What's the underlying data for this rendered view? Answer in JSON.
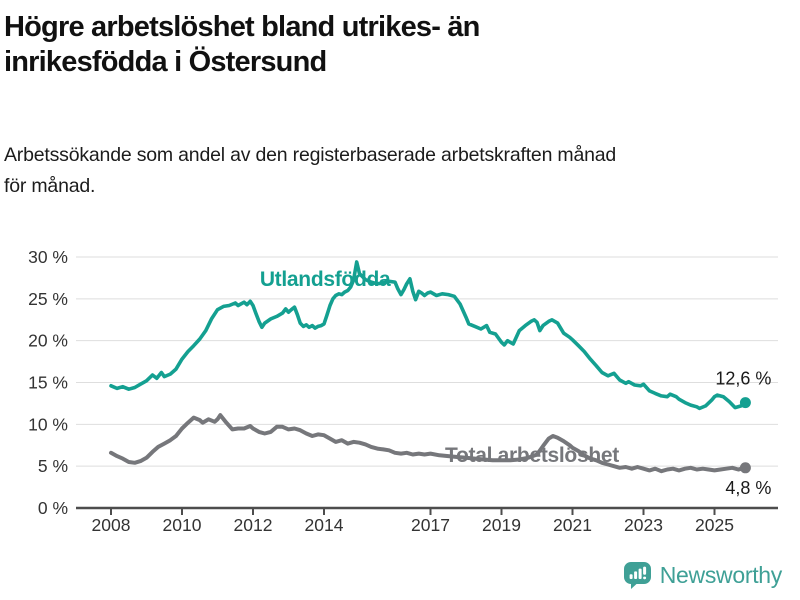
{
  "header": {
    "title_lines": [
      "Högre arbetslöshet bland utrikes- än",
      "inrikesfödda i Östersund"
    ],
    "subtitle_lines": [
      "Arbetssökande som andel av den registerbaserade arbetskraften månad",
      "för månad."
    ]
  },
  "chart_data": {
    "type": "line",
    "title": "Högre arbetslöshet bland utrikes- än inrikesfödda i Östersund",
    "subtitle": "Arbetssökande som andel av den registerbaserade arbetskraften månad för månad.",
    "xlabel": "",
    "ylabel": "",
    "x_range": [
      2007.7,
      2026.1
    ],
    "ylim": [
      0,
      30
    ],
    "grid": "horizontal",
    "colors": {
      "accent_teal": "#14a091",
      "neutral_gray": "#76777b",
      "gridline": "#dedede",
      "axis": "#4d4d4d",
      "tick_text": "#333333",
      "value_text": "#1a1a1a"
    },
    "y_ticks": [
      {
        "value": 0,
        "label": "0 %"
      },
      {
        "value": 5,
        "label": "5 %"
      },
      {
        "value": 10,
        "label": "10 %"
      },
      {
        "value": 15,
        "label": "15 %"
      },
      {
        "value": 20,
        "label": "20 %"
      },
      {
        "value": 25,
        "label": "25 %"
      },
      {
        "value": 30,
        "label": "30 %"
      }
    ],
    "x_ticks": [
      {
        "value": 2008,
        "label": "2008"
      },
      {
        "value": 2010,
        "label": "2010"
      },
      {
        "value": 2012,
        "label": "2012"
      },
      {
        "value": 2014,
        "label": "2014"
      },
      {
        "value": 2017,
        "label": "2017"
      },
      {
        "value": 2019,
        "label": "2019"
      },
      {
        "value": 2021,
        "label": "2021"
      },
      {
        "value": 2023,
        "label": "2023"
      },
      {
        "value": 2025,
        "label": "2025"
      }
    ],
    "series": [
      {
        "name": "Utlandsfödda",
        "color": "#14a091",
        "stroke_width": 3.6,
        "end_label": "12,6 %",
        "end_label_position": "above",
        "label_at": [
          2014.03,
          26.55
        ],
        "points": [
          [
            2008.0,
            14.6
          ],
          [
            2008.17,
            14.3
          ],
          [
            2008.33,
            14.5
          ],
          [
            2008.5,
            14.2
          ],
          [
            2008.67,
            14.4
          ],
          [
            2008.83,
            14.8
          ],
          [
            2009.0,
            15.2
          ],
          [
            2009.17,
            15.9
          ],
          [
            2009.29,
            15.5
          ],
          [
            2009.42,
            16.2
          ],
          [
            2009.5,
            15.7
          ],
          [
            2009.67,
            16.0
          ],
          [
            2009.83,
            16.6
          ],
          [
            2010.0,
            17.8
          ],
          [
            2010.17,
            18.7
          ],
          [
            2010.33,
            19.4
          ],
          [
            2010.5,
            20.2
          ],
          [
            2010.67,
            21.2
          ],
          [
            2010.83,
            22.6
          ],
          [
            2011.0,
            23.7
          ],
          [
            2011.17,
            24.1
          ],
          [
            2011.33,
            24.2
          ],
          [
            2011.5,
            24.5
          ],
          [
            2011.58,
            24.2
          ],
          [
            2011.75,
            24.6
          ],
          [
            2011.83,
            24.3
          ],
          [
            2011.92,
            24.7
          ],
          [
            2012.0,
            24.2
          ],
          [
            2012.08,
            23.3
          ],
          [
            2012.17,
            22.3
          ],
          [
            2012.25,
            21.6
          ],
          [
            2012.33,
            22.1
          ],
          [
            2012.5,
            22.6
          ],
          [
            2012.67,
            22.9
          ],
          [
            2012.83,
            23.3
          ],
          [
            2012.92,
            23.8
          ],
          [
            2013.0,
            23.4
          ],
          [
            2013.08,
            23.7
          ],
          [
            2013.17,
            24.0
          ],
          [
            2013.25,
            23.1
          ],
          [
            2013.33,
            22.1
          ],
          [
            2013.42,
            21.7
          ],
          [
            2013.5,
            21.9
          ],
          [
            2013.58,
            21.6
          ],
          [
            2013.67,
            21.8
          ],
          [
            2013.75,
            21.5
          ],
          [
            2013.83,
            21.7
          ],
          [
            2013.92,
            21.8
          ],
          [
            2014.0,
            22.0
          ],
          [
            2014.08,
            23.0
          ],
          [
            2014.17,
            24.2
          ],
          [
            2014.25,
            25.0
          ],
          [
            2014.33,
            25.4
          ],
          [
            2014.42,
            25.6
          ],
          [
            2014.5,
            25.5
          ],
          [
            2014.58,
            25.8
          ],
          [
            2014.67,
            26.0
          ],
          [
            2014.75,
            26.4
          ],
          [
            2014.83,
            27.2
          ],
          [
            2014.92,
            29.4
          ],
          [
            2015.0,
            28.0
          ],
          [
            2015.17,
            27.3
          ],
          [
            2015.33,
            27.0
          ],
          [
            2015.5,
            26.8
          ],
          [
            2015.67,
            26.9
          ],
          [
            2015.83,
            27.1
          ],
          [
            2016.0,
            27.0
          ],
          [
            2016.08,
            26.2
          ],
          [
            2016.17,
            25.5
          ],
          [
            2016.25,
            26.1
          ],
          [
            2016.33,
            26.8
          ],
          [
            2016.42,
            27.4
          ],
          [
            2016.5,
            25.9
          ],
          [
            2016.58,
            24.9
          ],
          [
            2016.67,
            25.9
          ],
          [
            2016.75,
            25.7
          ],
          [
            2016.83,
            25.4
          ],
          [
            2016.92,
            25.7
          ],
          [
            2017.0,
            25.8
          ],
          [
            2017.17,
            25.4
          ],
          [
            2017.33,
            25.6
          ],
          [
            2017.5,
            25.5
          ],
          [
            2017.67,
            25.3
          ],
          [
            2017.83,
            24.4
          ],
          [
            2018.0,
            22.8
          ],
          [
            2018.08,
            22.0
          ],
          [
            2018.25,
            21.7
          ],
          [
            2018.42,
            21.4
          ],
          [
            2018.58,
            21.8
          ],
          [
            2018.67,
            21.0
          ],
          [
            2018.83,
            20.8
          ],
          [
            2019.0,
            19.8
          ],
          [
            2019.08,
            19.5
          ],
          [
            2019.17,
            20.0
          ],
          [
            2019.33,
            19.6
          ],
          [
            2019.5,
            21.2
          ],
          [
            2019.67,
            21.8
          ],
          [
            2019.83,
            22.3
          ],
          [
            2019.92,
            22.5
          ],
          [
            2020.0,
            22.2
          ],
          [
            2020.08,
            21.2
          ],
          [
            2020.17,
            21.8
          ],
          [
            2020.33,
            22.3
          ],
          [
            2020.42,
            22.5
          ],
          [
            2020.58,
            22.1
          ],
          [
            2020.75,
            20.9
          ],
          [
            2020.92,
            20.4
          ],
          [
            2021.0,
            20.1
          ],
          [
            2021.17,
            19.4
          ],
          [
            2021.33,
            18.7
          ],
          [
            2021.5,
            17.8
          ],
          [
            2021.67,
            17.0
          ],
          [
            2021.83,
            16.2
          ],
          [
            2022.0,
            15.8
          ],
          [
            2022.17,
            16.1
          ],
          [
            2022.33,
            15.3
          ],
          [
            2022.5,
            14.9
          ],
          [
            2022.58,
            15.1
          ],
          [
            2022.75,
            14.7
          ],
          [
            2022.92,
            14.6
          ],
          [
            2023.0,
            14.8
          ],
          [
            2023.17,
            14.0
          ],
          [
            2023.33,
            13.7
          ],
          [
            2023.5,
            13.4
          ],
          [
            2023.67,
            13.3
          ],
          [
            2023.75,
            13.6
          ],
          [
            2023.92,
            13.3
          ],
          [
            2024.0,
            13.0
          ],
          [
            2024.17,
            12.6
          ],
          [
            2024.33,
            12.3
          ],
          [
            2024.5,
            12.1
          ],
          [
            2024.58,
            11.9
          ],
          [
            2024.75,
            12.2
          ],
          [
            2024.92,
            12.9
          ],
          [
            2025.0,
            13.3
          ],
          [
            2025.08,
            13.5
          ],
          [
            2025.25,
            13.3
          ],
          [
            2025.42,
            12.7
          ],
          [
            2025.58,
            12.0
          ],
          [
            2025.75,
            12.2
          ],
          [
            2025.87,
            12.6
          ]
        ]
      },
      {
        "name": "Total arbetslöshet",
        "color": "#76777b",
        "stroke_width": 4,
        "end_label": "4,8 %",
        "end_label_position": "below",
        "label_at": [
          2019.86,
          5.5
        ],
        "points": [
          [
            2008.0,
            6.6
          ],
          [
            2008.17,
            6.2
          ],
          [
            2008.33,
            5.9
          ],
          [
            2008.5,
            5.5
          ],
          [
            2008.67,
            5.4
          ],
          [
            2008.83,
            5.6
          ],
          [
            2009.0,
            6.0
          ],
          [
            2009.17,
            6.7
          ],
          [
            2009.33,
            7.3
          ],
          [
            2009.5,
            7.7
          ],
          [
            2009.67,
            8.1
          ],
          [
            2009.83,
            8.6
          ],
          [
            2010.0,
            9.5
          ],
          [
            2010.17,
            10.2
          ],
          [
            2010.33,
            10.8
          ],
          [
            2010.5,
            10.5
          ],
          [
            2010.58,
            10.2
          ],
          [
            2010.75,
            10.6
          ],
          [
            2010.92,
            10.3
          ],
          [
            2011.0,
            10.6
          ],
          [
            2011.08,
            11.1
          ],
          [
            2011.25,
            10.2
          ],
          [
            2011.42,
            9.4
          ],
          [
            2011.58,
            9.5
          ],
          [
            2011.75,
            9.5
          ],
          [
            2011.92,
            9.8
          ],
          [
            2012.0,
            9.5
          ],
          [
            2012.17,
            9.1
          ],
          [
            2012.33,
            8.9
          ],
          [
            2012.5,
            9.1
          ],
          [
            2012.67,
            9.7
          ],
          [
            2012.83,
            9.7
          ],
          [
            2013.0,
            9.4
          ],
          [
            2013.17,
            9.5
          ],
          [
            2013.33,
            9.3
          ],
          [
            2013.5,
            8.9
          ],
          [
            2013.67,
            8.6
          ],
          [
            2013.83,
            8.8
          ],
          [
            2014.0,
            8.7
          ],
          [
            2014.17,
            8.3
          ],
          [
            2014.33,
            7.9
          ],
          [
            2014.5,
            8.1
          ],
          [
            2014.67,
            7.7
          ],
          [
            2014.83,
            7.9
          ],
          [
            2015.0,
            7.8
          ],
          [
            2015.17,
            7.6
          ],
          [
            2015.33,
            7.3
          ],
          [
            2015.5,
            7.1
          ],
          [
            2015.67,
            7.0
          ],
          [
            2015.83,
            6.9
          ],
          [
            2016.0,
            6.6
          ],
          [
            2016.17,
            6.5
          ],
          [
            2016.33,
            6.6
          ],
          [
            2016.5,
            6.4
          ],
          [
            2016.67,
            6.5
          ],
          [
            2016.83,
            6.4
          ],
          [
            2017.0,
            6.5
          ],
          [
            2017.25,
            6.3
          ],
          [
            2017.5,
            6.2
          ],
          [
            2017.75,
            6.1
          ],
          [
            2018.0,
            6.0
          ],
          [
            2018.25,
            5.9
          ],
          [
            2018.5,
            5.8
          ],
          [
            2018.75,
            5.7
          ],
          [
            2019.0,
            5.7
          ],
          [
            2019.25,
            5.7
          ],
          [
            2019.5,
            5.8
          ],
          [
            2019.75,
            6.0
          ],
          [
            2020.0,
            6.4
          ],
          [
            2020.17,
            7.4
          ],
          [
            2020.33,
            8.3
          ],
          [
            2020.45,
            8.6
          ],
          [
            2020.58,
            8.4
          ],
          [
            2020.75,
            8.0
          ],
          [
            2020.92,
            7.5
          ],
          [
            2021.0,
            7.2
          ],
          [
            2021.17,
            6.8
          ],
          [
            2021.33,
            6.3
          ],
          [
            2021.5,
            5.9
          ],
          [
            2021.67,
            5.7
          ],
          [
            2021.83,
            5.4
          ],
          [
            2022.0,
            5.2
          ],
          [
            2022.17,
            5.0
          ],
          [
            2022.33,
            4.8
          ],
          [
            2022.5,
            4.9
          ],
          [
            2022.67,
            4.7
          ],
          [
            2022.83,
            4.9
          ],
          [
            2023.0,
            4.7
          ],
          [
            2023.17,
            4.5
          ],
          [
            2023.33,
            4.7
          ],
          [
            2023.5,
            4.4
          ],
          [
            2023.67,
            4.6
          ],
          [
            2023.83,
            4.7
          ],
          [
            2024.0,
            4.5
          ],
          [
            2024.17,
            4.7
          ],
          [
            2024.33,
            4.8
          ],
          [
            2024.5,
            4.6
          ],
          [
            2024.67,
            4.7
          ],
          [
            2024.83,
            4.6
          ],
          [
            2025.0,
            4.5
          ],
          [
            2025.17,
            4.6
          ],
          [
            2025.33,
            4.7
          ],
          [
            2025.5,
            4.8
          ],
          [
            2025.67,
            4.6
          ],
          [
            2025.87,
            4.8
          ]
        ]
      }
    ]
  },
  "footer": {
    "brand": "Newsworthy",
    "brand_color": "#3fa096",
    "logo_icon": "bar-chart-speech-bubble-icon"
  }
}
